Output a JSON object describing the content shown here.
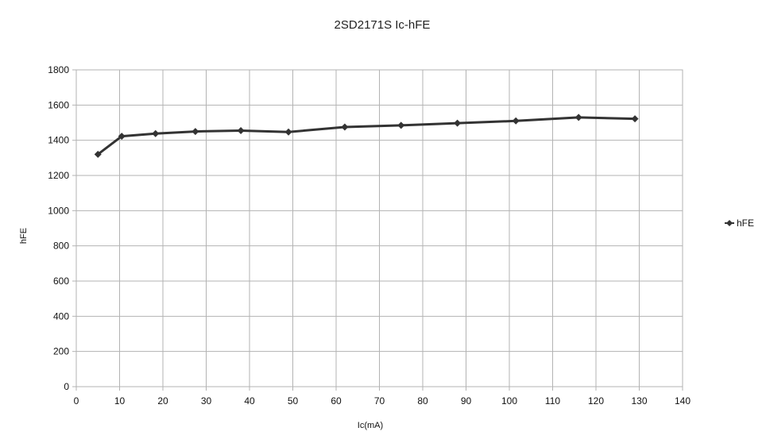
{
  "chart_data": {
    "type": "line",
    "title": "2SD2171S Ic-hFE",
    "xlabel": "Ic(mA)",
    "ylabel": "hFE",
    "xlim": [
      0,
      140
    ],
    "ylim": [
      0,
      1800
    ],
    "x_ticks": [
      "0",
      "10",
      "20",
      "30",
      "40",
      "50",
      "60",
      "70",
      "80",
      "90",
      "100",
      "110",
      "120",
      "130",
      "140"
    ],
    "y_ticks": [
      "0",
      "200",
      "400",
      "600",
      "800",
      "1000",
      "1200",
      "1400",
      "1600",
      "1800"
    ],
    "grid": true,
    "legend_position": "right",
    "series": [
      {
        "name": "hFE",
        "color": "#333333",
        "marker": "diamond",
        "x": [
          5,
          10.5,
          18.3,
          27.5,
          38,
          49,
          62,
          75,
          88,
          101.5,
          116,
          129
        ],
        "y": [
          1320,
          1423,
          1438,
          1450,
          1455,
          1447,
          1475,
          1485,
          1497,
          1510,
          1530,
          1522
        ]
      }
    ]
  }
}
